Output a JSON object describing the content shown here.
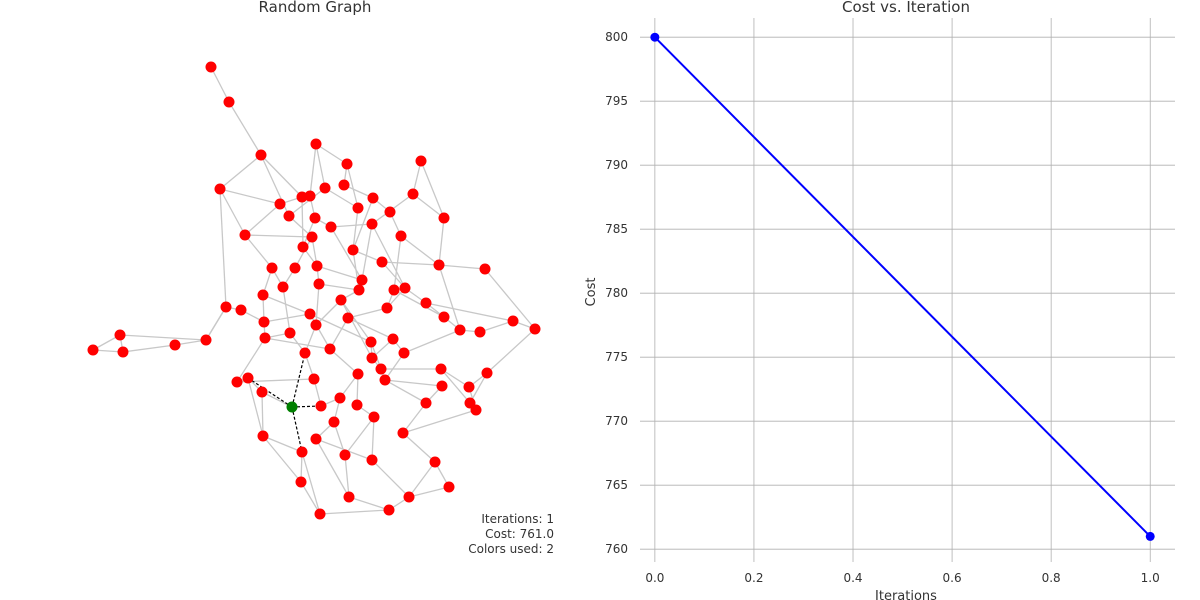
{
  "chart_data": [
    {
      "type": "network",
      "title": "Random Graph",
      "node_count": 100,
      "highlighted_node_count": 1,
      "annotations": {
        "iterations": "Iterations: 1",
        "cost": "Cost: 761.0",
        "colors_used": "Colors used: 2"
      },
      "colors": {
        "node": "#ff0000",
        "highlight": "#008000",
        "edge": "#c8c8c8",
        "highlight_edge": "#000000"
      }
    },
    {
      "type": "line",
      "title": "Cost vs. Iteration",
      "xlabel": "Iterations",
      "ylabel": "Cost",
      "xlim": [
        -0.03,
        1.05
      ],
      "ylim": [
        759,
        801.5
      ],
      "xticks": [
        0.0,
        0.2,
        0.4,
        0.6,
        0.8,
        1.0
      ],
      "xtick_labels": [
        "0.0",
        "0.2",
        "0.4",
        "0.6",
        "0.8",
        "1.0"
      ],
      "yticks": [
        760,
        765,
        770,
        775,
        780,
        785,
        790,
        795,
        800
      ],
      "ytick_labels": [
        "760",
        "765",
        "770",
        "775",
        "780",
        "785",
        "790",
        "795",
        "800"
      ],
      "grid": true,
      "series": [
        {
          "x": [
            0,
            1
          ],
          "values": [
            800,
            761
          ],
          "color": "#0000ff"
        }
      ]
    }
  ]
}
